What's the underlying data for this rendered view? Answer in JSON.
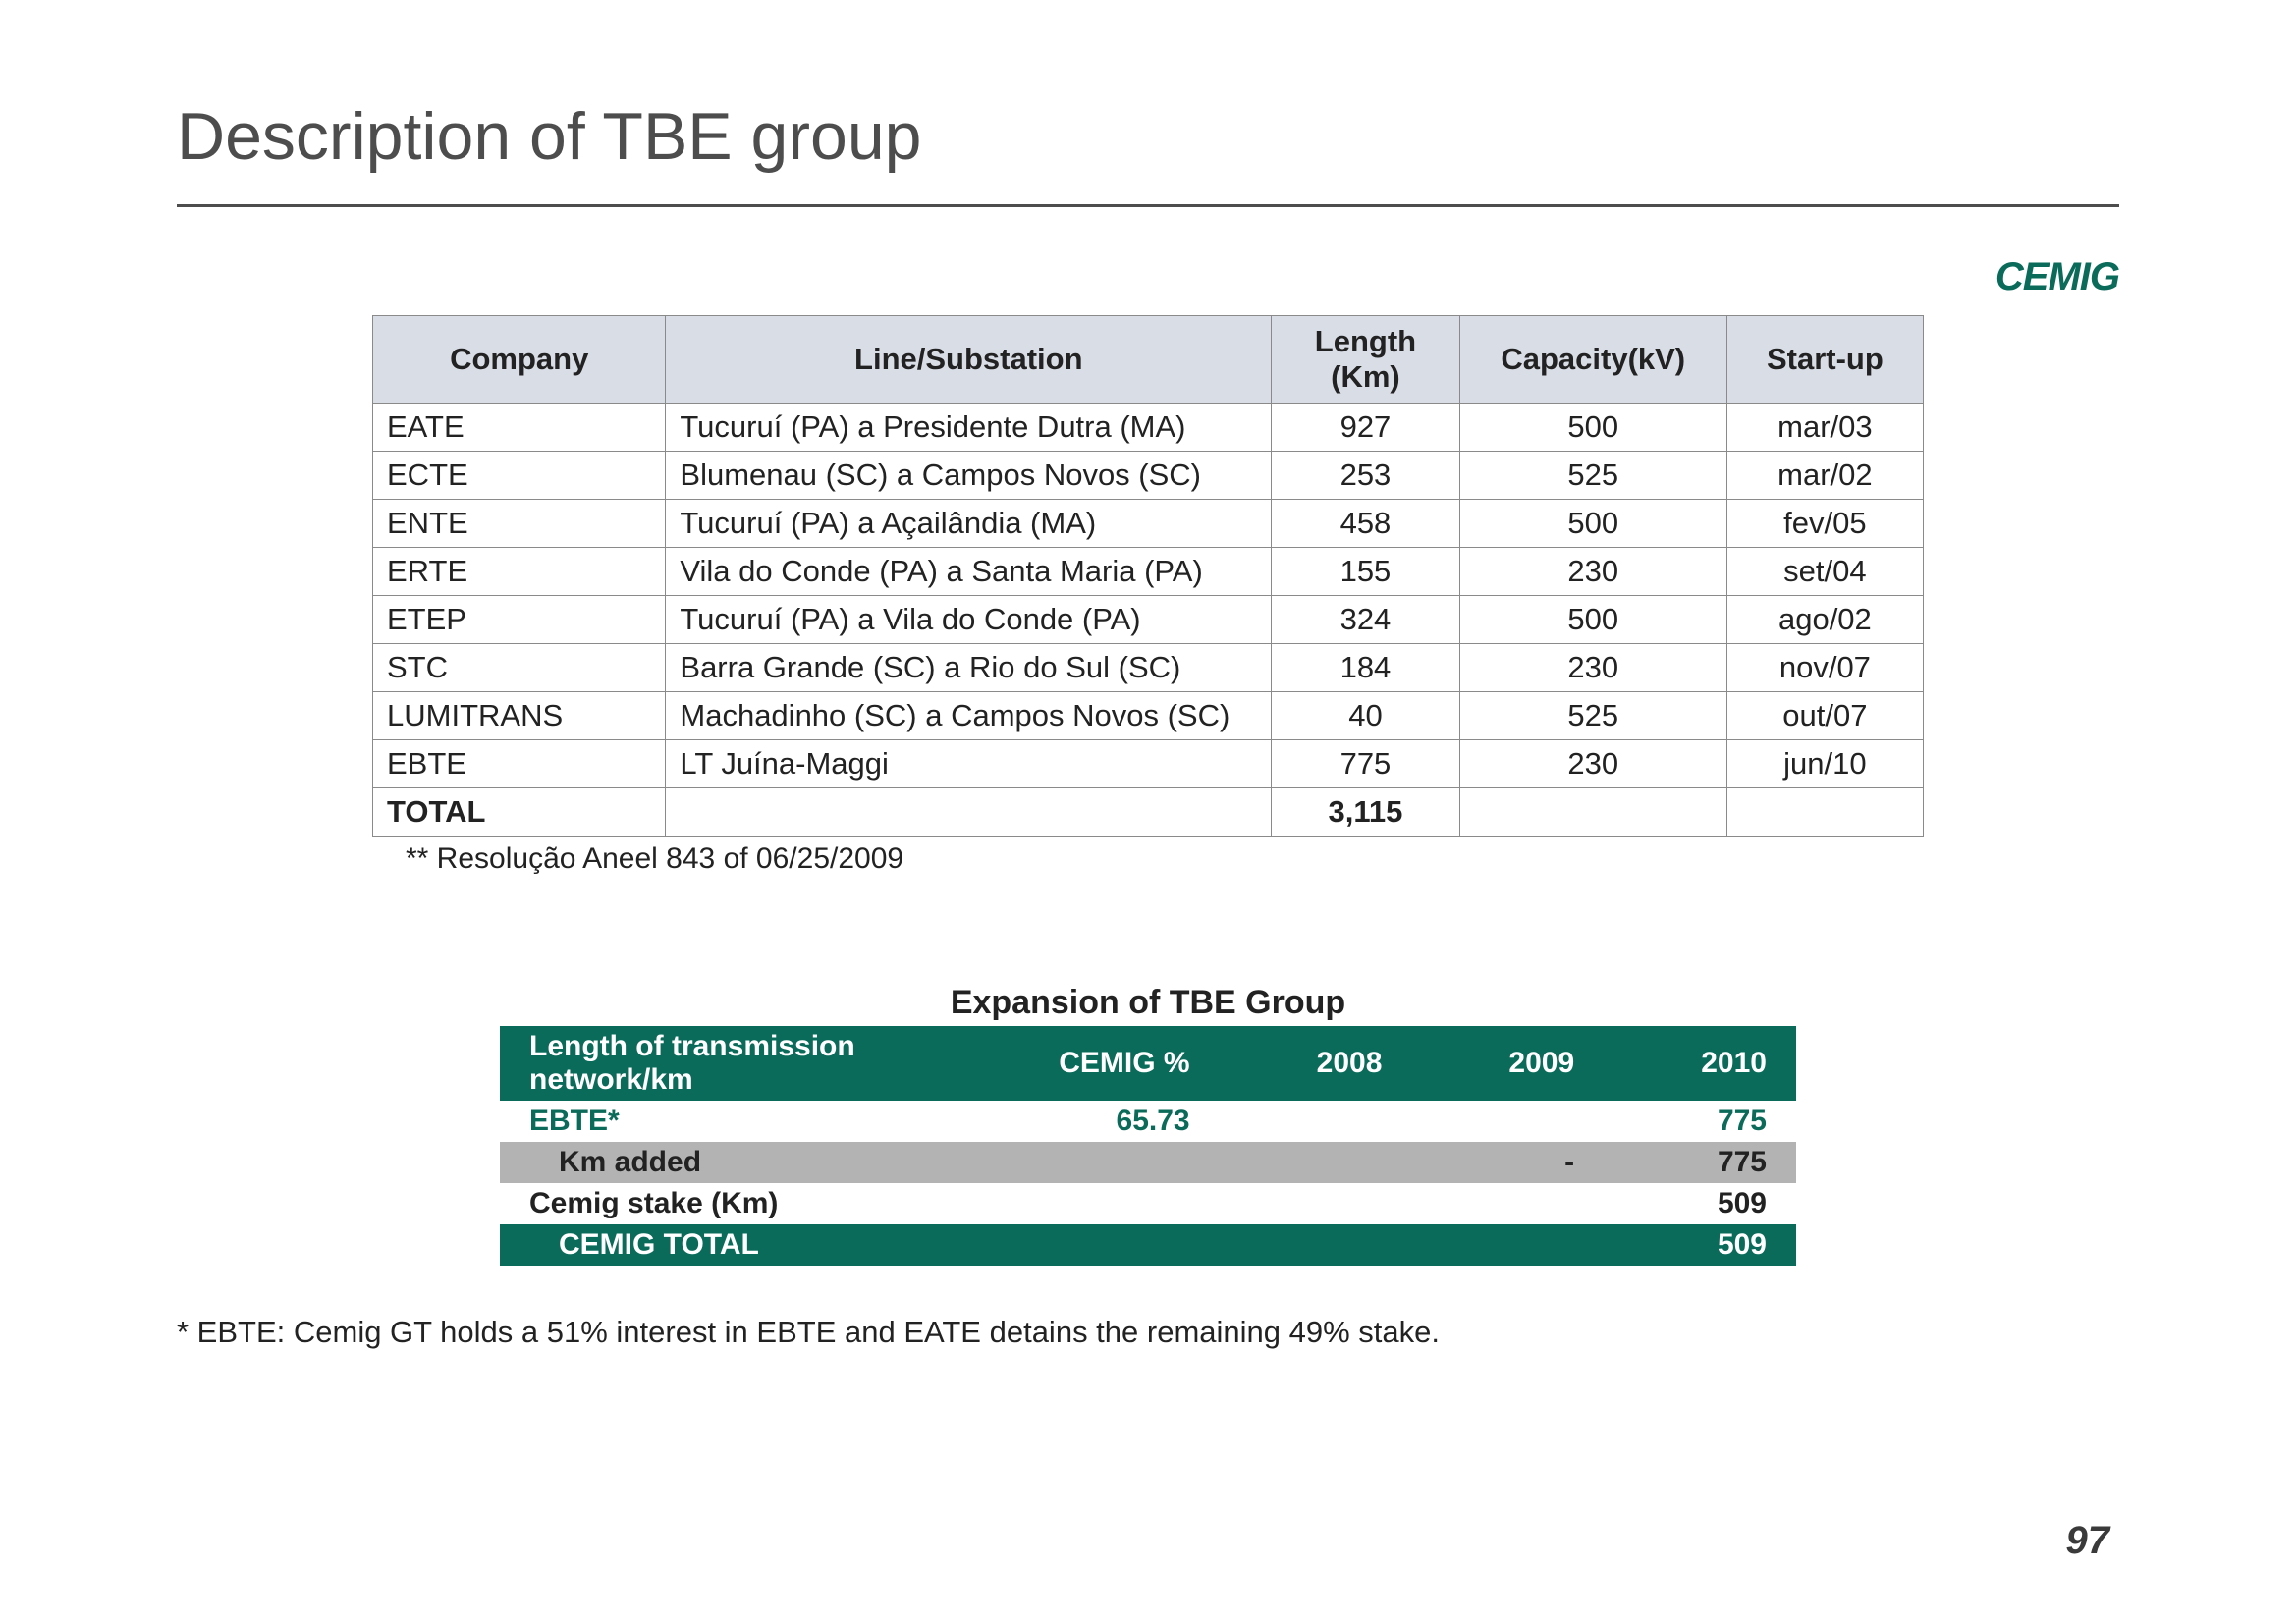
{
  "page": {
    "title": "Description of TBE group",
    "logo_text": "CEMIG",
    "page_number": "97"
  },
  "table1": {
    "columns": [
      "Company",
      "Line/Substation",
      "Length (Km)",
      "Capacity(kV)",
      "Start-up"
    ],
    "rows": [
      {
        "company": "EATE",
        "line": "Tucuruí (PA) a Presidente Dutra (MA)",
        "length": "927",
        "capacity": "500",
        "start": "mar/03"
      },
      {
        "company": "ECTE",
        "line": "Blumenau (SC) a Campos Novos (SC)",
        "length": "253",
        "capacity": "525",
        "start": "mar/02"
      },
      {
        "company": "ENTE",
        "line": "Tucuruí (PA) a Açailândia (MA)",
        "length": "458",
        "capacity": "500",
        "start": "fev/05"
      },
      {
        "company": "ERTE",
        "line": "Vila do Conde (PA) a Santa Maria (PA)",
        "length": "155",
        "capacity": "230",
        "start": "set/04"
      },
      {
        "company": "ETEP",
        "line": "Tucuruí (PA) a Vila do Conde (PA)",
        "length": "324",
        "capacity": "500",
        "start": "ago/02"
      },
      {
        "company": "STC",
        "line": "Barra Grande (SC) a Rio do Sul (SC)",
        "length": "184",
        "capacity": "230",
        "start": "nov/07"
      },
      {
        "company": "LUMITRANS",
        "line": "Machadinho  (SC) a Campos Novos (SC)",
        "length": "40",
        "capacity": "525",
        "start": "out/07"
      },
      {
        "company": "EBTE",
        "line": "LT Juína-Maggi",
        "length": "775",
        "capacity": "230",
        "start": "jun/10"
      }
    ],
    "total_label": "TOTAL",
    "total_length": "3,115",
    "footnote": "**  Resolução Aneel 843 of 06/25/2009"
  },
  "table2": {
    "title": "Expansion of TBE Group",
    "header": [
      "Length of transmission network/km",
      "CEMIG %",
      "2008",
      "2009",
      "2010"
    ],
    "row_ebte": {
      "label": "EBTE*",
      "cemig": "65.73",
      "y2008": "",
      "y2009": "",
      "y2010": "775"
    },
    "row_km": {
      "label": "Km added",
      "cemig": "",
      "y2008": "",
      "y2009": "-",
      "y2010": "775"
    },
    "row_stake": {
      "label": "Cemig stake (Km)",
      "cemig": "",
      "y2008": "",
      "y2009": "",
      "y2010": "509"
    },
    "row_total": {
      "label": "CEMIG TOTAL",
      "cemig": "",
      "y2008": "",
      "y2009": "",
      "y2010": "509"
    }
  },
  "footnote2": "* EBTE: Cemig GT holds a 51% interest in EBTE and EATE detains the remaining 49% stake.",
  "style": {
    "header_bg": "#d9dde6",
    "border_color": "#8a8a8a",
    "brand_teal": "#0a6b5a",
    "gray_row": "#b3b3b3",
    "title_fontsize": 68,
    "body_fontsize": 31
  }
}
